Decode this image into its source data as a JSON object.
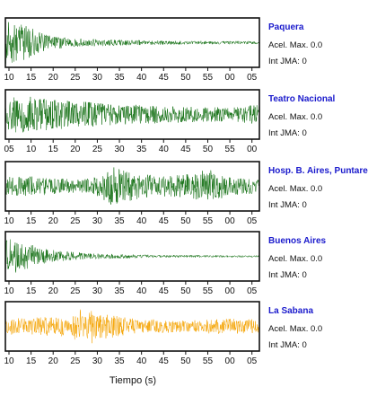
{
  "chart_data": {
    "type": "line",
    "xlabel": "Tiempo (s)",
    "colors": {
      "default": "#0b6b0b",
      "highlight": "#f5a300"
    },
    "panels": [
      {
        "station": "Paquera",
        "acel": "Acel. Max. 0.0",
        "int": "Int JMA: 0",
        "color": "#0b6b0b",
        "ticks": [
          "10",
          "15",
          "20",
          "25",
          "30",
          "35",
          "40",
          "45",
          "50",
          "55",
          "00",
          "05"
        ],
        "envelope": [
          [
            0,
            0.95
          ],
          [
            0.02,
            0.95
          ],
          [
            0.08,
            0.75
          ],
          [
            0.15,
            0.4
          ],
          [
            0.25,
            0.2
          ],
          [
            0.45,
            0.12
          ],
          [
            0.7,
            0.08
          ],
          [
            1,
            0.06
          ]
        ]
      },
      {
        "station": "Teatro Nacional",
        "acel": "Acel. Max. 0.0",
        "int": "Int JMA: 0",
        "color": "#0b6b0b",
        "ticks": [
          "05",
          "10",
          "15",
          "20",
          "25",
          "30",
          "35",
          "40",
          "45",
          "50",
          "55",
          "00"
        ],
        "envelope": [
          [
            0,
            0.55
          ],
          [
            0.03,
            0.9
          ],
          [
            0.12,
            0.75
          ],
          [
            0.25,
            0.6
          ],
          [
            0.45,
            0.45
          ],
          [
            0.7,
            0.35
          ],
          [
            0.9,
            0.3
          ],
          [
            1,
            0.45
          ]
        ]
      },
      {
        "station": "Hosp. B. Aires, Puntare",
        "acel": "Acel. Max. 0.0",
        "int": "Int JMA: 0",
        "color": "#0b6b0b",
        "ticks": [
          "10",
          "15",
          "20",
          "25",
          "30",
          "35",
          "40",
          "45",
          "50",
          "55",
          "00",
          "05"
        ],
        "envelope": [
          [
            0,
            0.4
          ],
          [
            0.1,
            0.45
          ],
          [
            0.2,
            0.35
          ],
          [
            0.3,
            0.3
          ],
          [
            0.38,
            0.55
          ],
          [
            0.42,
            0.85
          ],
          [
            0.5,
            0.6
          ],
          [
            0.6,
            0.45
          ],
          [
            0.7,
            0.5
          ],
          [
            0.8,
            0.75
          ],
          [
            0.88,
            0.4
          ],
          [
            1,
            0.3
          ]
        ]
      },
      {
        "station": "Buenos Aires",
        "acel": "Acel. Max. 0.0",
        "int": "Int JMA: 0",
        "color": "#0b6b0b",
        "ticks": [
          "10",
          "15",
          "20",
          "25",
          "30",
          "35",
          "40",
          "45",
          "50",
          "55",
          "00",
          "05"
        ],
        "envelope": [
          [
            0,
            0.85
          ],
          [
            0.05,
            0.7
          ],
          [
            0.12,
            0.45
          ],
          [
            0.2,
            0.25
          ],
          [
            0.35,
            0.12
          ],
          [
            0.6,
            0.06
          ],
          [
            1,
            0.04
          ]
        ]
      },
      {
        "station": "La Sabana",
        "acel": "Acel. Max. 0.0",
        "int": "Int JMA: 0",
        "color": "#f5a300",
        "ticks": [
          "10",
          "15",
          "20",
          "25",
          "30",
          "35",
          "40",
          "45",
          "50",
          "55",
          "00",
          "05"
        ],
        "envelope": [
          [
            0,
            0.35
          ],
          [
            0.15,
            0.4
          ],
          [
            0.25,
            0.45
          ],
          [
            0.29,
            0.7
          ],
          [
            0.32,
            1.0
          ],
          [
            0.36,
            0.6
          ],
          [
            0.5,
            0.35
          ],
          [
            0.7,
            0.25
          ],
          [
            0.85,
            0.35
          ],
          [
            1,
            0.3
          ]
        ]
      }
    ]
  }
}
